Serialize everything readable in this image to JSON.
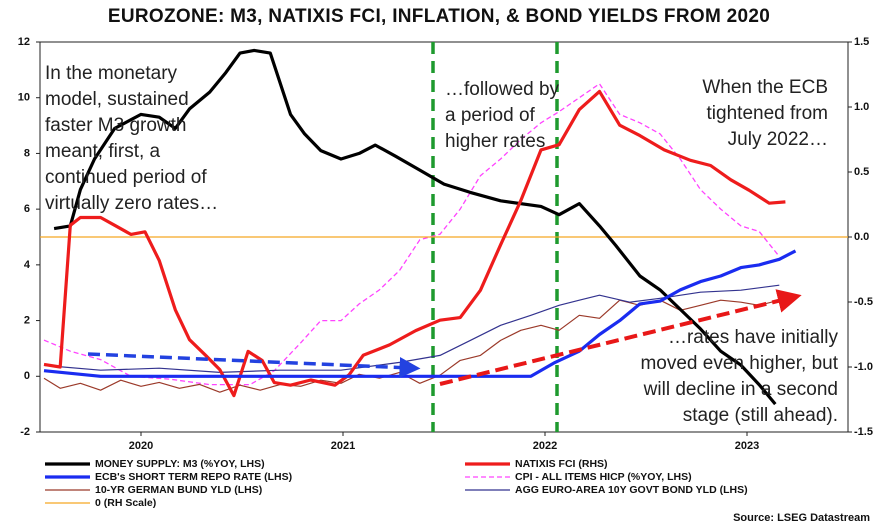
{
  "chart_data": {
    "type": "line",
    "title": "EUROZONE: M3, NATIXIS FCI, INFLATION, & BOND YIELDS FROM 2020",
    "source": "Source: LSEG Datastream",
    "xlim": [
      2020,
      2024
    ],
    "xticks": [
      {
        "value": 2020.5,
        "label": "2020"
      },
      {
        "value": 2021.5,
        "label": "2021"
      },
      {
        "value": 2022.5,
        "label": "2022"
      },
      {
        "value": 2023.5,
        "label": "2023"
      }
    ],
    "ylim": [
      -2,
      12
    ],
    "yticks": [
      -2,
      0,
      2,
      4,
      6,
      8,
      10,
      12
    ],
    "y2lim": [
      -1.5,
      1.5
    ],
    "y2ticks": [
      -1.5,
      {
        "value": -1.0,
        "label": "-1.0"
      },
      -0.5,
      {
        "value": 0.0,
        "label": "0.0"
      },
      0.5,
      {
        "value": 1.0,
        "label": "1.0"
      },
      1.5
    ],
    "annotations": [
      [
        "In the monetary",
        "model, sustained",
        "faster M3 growth",
        "meant, first, a",
        "continued period of",
        "virtually zero rates…"
      ],
      [
        "…followed by",
        "a period of",
        "higher rates"
      ],
      [
        "When the ECB",
        "tightened from",
        "July 2022…"
      ],
      [
        "…rates have initially",
        "moved even higher, but",
        "will decline in a second",
        "stage (still ahead)."
      ]
    ],
    "series": [
      {
        "name": "MONEY SUPPLY: M3 (%YOY, LHS)",
        "color": "#000000",
        "style": "thick",
        "x": [
          2020.07,
          2020.15,
          2020.2,
          2020.27,
          2020.37,
          2020.5,
          2020.59,
          2020.67,
          2020.74,
          2020.84,
          2020.92,
          2020.99,
          2021.06,
          2021.14,
          2021.24,
          2021.31,
          2021.39,
          2021.49,
          2021.58,
          2021.66,
          2021.76,
          2021.88,
          2022.0,
          2022.13,
          2022.28,
          2022.48,
          2022.57,
          2022.67,
          2022.77,
          2022.85,
          2022.97,
          2023.07,
          2023.17,
          2023.27,
          2023.37,
          2023.47,
          2023.56,
          2023.64
        ],
        "values": [
          5.3,
          5.4,
          6.7,
          7.8,
          8.9,
          9.4,
          9.3,
          8.9,
          9.6,
          10.2,
          10.9,
          11.6,
          11.7,
          11.6,
          9.4,
          8.7,
          8.1,
          7.8,
          8.0,
          8.3,
          7.9,
          7.4,
          6.9,
          6.6,
          6.3,
          6.1,
          5.8,
          6.2,
          5.4,
          4.7,
          3.6,
          3.1,
          2.4,
          1.7,
          0.9,
          0.4,
          -0.3,
          -1.0
        ]
      },
      {
        "name": "NATIXIS FCI (RHS)",
        "color": "#ee1c1c",
        "style": "thick",
        "axis": "y2",
        "x": [
          2020.02,
          2020.1,
          2020.15,
          2020.2,
          2020.3,
          2020.37,
          2020.45,
          2020.52,
          2020.59,
          2020.67,
          2020.74,
          2020.82,
          2020.89,
          2020.96,
          2021.03,
          2021.1,
          2021.16,
          2021.24,
          2021.34,
          2021.46,
          2021.53,
          2021.6,
          2021.73,
          2021.86,
          2021.98,
          2022.08,
          2022.18,
          2022.28,
          2022.38,
          2022.48,
          2022.57,
          2022.67,
          2022.77,
          2022.87,
          2022.97,
          2023.09,
          2023.22,
          2023.32,
          2023.42,
          2023.51,
          2023.61,
          2023.69
        ],
        "values": [
          -0.98,
          -1.0,
          0.09,
          0.15,
          0.15,
          0.09,
          0.02,
          0.04,
          -0.18,
          -0.56,
          -0.79,
          -0.91,
          -1.02,
          -1.22,
          -0.88,
          -0.95,
          -1.12,
          -1.14,
          -1.1,
          -1.14,
          -1.06,
          -0.91,
          -0.83,
          -0.72,
          -0.64,
          -0.62,
          -0.41,
          -0.06,
          0.28,
          0.67,
          0.71,
          0.98,
          1.12,
          0.86,
          0.78,
          0.67,
          0.59,
          0.55,
          0.44,
          0.36,
          0.26,
          0.27
        ]
      },
      {
        "name": "ECB's SHORT TERM REPO RATE (LHS)",
        "color": "#1a2cf0",
        "style": "thick",
        "x": [
          2020.02,
          2020.3,
          2021.04,
          2022.43,
          2022.55,
          2022.67,
          2022.77,
          2022.87,
          2022.97,
          2023.07,
          2023.17,
          2023.27,
          2023.37,
          2023.47,
          2023.56,
          2023.66,
          2023.74
        ],
        "values": [
          0.2,
          0,
          0,
          0,
          0.5,
          0.9,
          1.5,
          2.0,
          2.6,
          2.7,
          3.1,
          3.4,
          3.6,
          3.9,
          4.0,
          4.2,
          4.5
        ]
      },
      {
        "name": "CPI - ALL ITEMS HICP (%YOY, LHS)",
        "color": "#ff44ff",
        "style": "dashed",
        "x": [
          2020.02,
          2020.15,
          2020.3,
          2020.45,
          2020.64,
          2020.84,
          2021.04,
          2021.16,
          2021.29,
          2021.39,
          2021.49,
          2021.58,
          2021.68,
          2021.78,
          2021.88,
          2021.98,
          2022.08,
          2022.18,
          2022.28,
          2022.38,
          2022.48,
          2022.57,
          2022.67,
          2022.77,
          2022.87,
          2022.97,
          2023.07,
          2023.17,
          2023.27,
          2023.37,
          2023.47,
          2023.56,
          2023.66
        ],
        "values": [
          1.3,
          0.9,
          0.6,
          0.0,
          -0.1,
          -0.3,
          -0.3,
          0.2,
          1.2,
          2.0,
          2.0,
          2.6,
          3.1,
          3.8,
          4.9,
          5.1,
          6.0,
          7.2,
          7.8,
          8.5,
          9.1,
          9.5,
          10.0,
          10.5,
          9.4,
          9.1,
          8.7,
          7.8,
          6.7,
          6.0,
          5.4,
          5.2,
          4.3
        ]
      },
      {
        "name": "10-YR GERMAN BUND YLD (LHS)",
        "color": "#9b3a2a",
        "style": "thin",
        "x": [
          2020.02,
          2020.1,
          2020.2,
          2020.3,
          2020.4,
          2020.5,
          2020.59,
          2020.69,
          2020.79,
          2020.89,
          2020.99,
          2021.09,
          2021.19,
          2021.29,
          2021.39,
          2021.49,
          2021.58,
          2021.68,
          2021.78,
          2021.88,
          2021.98,
          2022.08,
          2022.18,
          2022.28,
          2022.38,
          2022.48,
          2022.57,
          2022.67,
          2022.77,
          2022.87,
          2022.97,
          2023.07,
          2023.17,
          2023.27,
          2023.37,
          2023.47,
          2023.56,
          2023.66
        ],
        "values": [
          -0.07,
          -0.43,
          -0.25,
          -0.5,
          -0.14,
          -0.36,
          -0.22,
          -0.43,
          -0.29,
          -0.57,
          -0.32,
          -0.5,
          -0.29,
          -0.36,
          -0.14,
          -0.25,
          0.07,
          -0.07,
          0.14,
          -0.25,
          0.04,
          0.57,
          0.75,
          1.29,
          1.65,
          1.83,
          1.65,
          2.19,
          2.08,
          2.73,
          2.55,
          2.73,
          2.37,
          2.55,
          2.73,
          2.66,
          2.55,
          2.73
        ]
      },
      {
        "name": "AGG EURO-AREA 10Y GOVT BOND YLD (LHS)",
        "color": "#33338f",
        "style": "thin",
        "x": [
          2020.02,
          2020.3,
          2020.59,
          2020.89,
          2021.19,
          2021.49,
          2021.78,
          2021.98,
          2022.13,
          2022.28,
          2022.43,
          2022.57,
          2022.67,
          2022.77,
          2022.92,
          2023.07,
          2023.27,
          2023.47,
          2023.66
        ],
        "values": [
          0.39,
          0.22,
          0.29,
          0.14,
          0.22,
          0.22,
          0.5,
          0.75,
          1.29,
          1.83,
          2.19,
          2.55,
          2.73,
          2.91,
          2.66,
          2.8,
          3.02,
          3.09,
          3.27
        ]
      },
      {
        "name": "0 (RH Scale)",
        "color": "#f5a623",
        "style": "thin",
        "axis": "y2",
        "x": [
          2020,
          2024
        ],
        "values": [
          0,
          0
        ]
      }
    ]
  }
}
